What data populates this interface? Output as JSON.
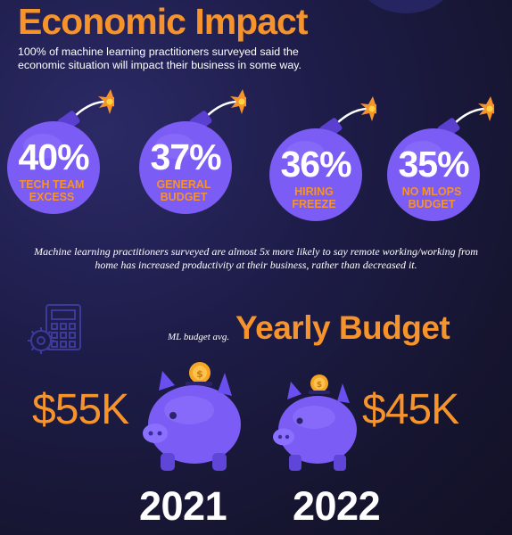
{
  "header": {
    "title": "Economic Impact",
    "subtitle": "100% of machine learning practitioners surveyed said the economic situation will impact their business in some way."
  },
  "impacts": [
    {
      "percent": "40%",
      "label": "TECH TEAM EXCESS"
    },
    {
      "percent": "37%",
      "label": "GENERAL BUDGET"
    },
    {
      "percent": "36%",
      "label": "HIRING FREEZE"
    },
    {
      "percent": "35%",
      "label": "NO MLOPS BUDGET"
    }
  ],
  "note": "Machine learning practitioners surveyed are almost 5x more likely to say remote working/working from home has increased productivity at their business, rather than decreased it.",
  "budget": {
    "title": "Yearly Budget",
    "note": "ML budget avg.",
    "years": [
      {
        "amount": "$55K",
        "year": "2021"
      },
      {
        "amount": "$45K",
        "year": "2022"
      }
    ]
  },
  "colors": {
    "accent": "#f6932b",
    "bomb_fill": "#7b5cf5",
    "background": "#1d1c48"
  },
  "icons": [
    "bomb-icon",
    "spark-icon",
    "calculator-icon",
    "gear-icon",
    "piggy-bank-icon",
    "coin-icon"
  ]
}
